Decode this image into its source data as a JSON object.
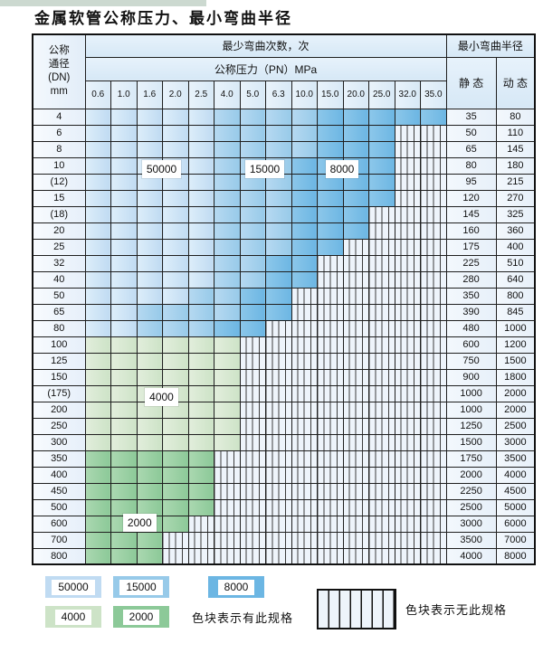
{
  "title": "金属软管公称压力、最小弯曲半径",
  "table": {
    "dn_header_lines": [
      "公称",
      "通径",
      "(DN)",
      "mm"
    ],
    "cycles_header": "最少弯曲次数，次",
    "pressure_header": "公称压力（PN）MPa",
    "radius_header": "最小弯曲半径",
    "static_label": "静 态",
    "dynamic_label": "动 态",
    "pressure_columns": [
      "0.6",
      "1.0",
      "1.6",
      "2.0",
      "2.5",
      "4.0",
      "5.0",
      "6.3",
      "10.0",
      "15.0",
      "20.0",
      "25.0",
      "32.0",
      "35.0"
    ],
    "rows": [
      {
        "dn": "4",
        "zones": "55555111188888",
        "static": "35",
        "dynamic": "80"
      },
      {
        "dn": "6",
        "zones": "555551111888xx",
        "static": "50",
        "dynamic": "110"
      },
      {
        "dn": "8",
        "zones": "555551111888xx",
        "static": "65",
        "dynamic": "145"
      },
      {
        "dn": "10",
        "zones": "555551118888xx",
        "static": "80",
        "dynamic": "180"
      },
      {
        "dn": "(12)",
        "zones": "555551118888xx",
        "static": "95",
        "dynamic": "215"
      },
      {
        "dn": "15",
        "zones": "555551118888xx",
        "static": "120",
        "dynamic": "270"
      },
      {
        "dn": "(18)",
        "zones": "55555111888xxx",
        "static": "145",
        "dynamic": "325"
      },
      {
        "dn": "20",
        "zones": "55555111888xxx",
        "static": "160",
        "dynamic": "360"
      },
      {
        "dn": "25",
        "zones": "5555511188xxxx",
        "static": "175",
        "dynamic": "400"
      },
      {
        "dn": "32",
        "zones": "555551188xxxxx",
        "static": "225",
        "dynamic": "510"
      },
      {
        "dn": "40",
        "zones": "555551188xxxxx",
        "static": "280",
        "dynamic": "640"
      },
      {
        "dn": "50",
        "zones": "55551188xxxxxx",
        "static": "350",
        "dynamic": "800"
      },
      {
        "dn": "65",
        "zones": "55111188xxxxxx",
        "static": "390",
        "dynamic": "845"
      },
      {
        "dn": "80",
        "zones": "5511188xxxxxxx",
        "static": "480",
        "dynamic": "1000"
      },
      {
        "dn": "100",
        "zones": "444444xxxxxxxx",
        "static": "600",
        "dynamic": "1200"
      },
      {
        "dn": "125",
        "zones": "444444xxxxxxxx",
        "static": "750",
        "dynamic": "1500"
      },
      {
        "dn": "150",
        "zones": "444444xxxxxxxx",
        "static": "900",
        "dynamic": "1800"
      },
      {
        "dn": "(175)",
        "zones": "444444xxxxxxxx",
        "static": "1000",
        "dynamic": "2000"
      },
      {
        "dn": "200",
        "zones": "444444xxxxxxxx",
        "static": "1000",
        "dynamic": "2000"
      },
      {
        "dn": "250",
        "zones": "444444xxxxxxxx",
        "static": "1250",
        "dynamic": "2500"
      },
      {
        "dn": "300",
        "zones": "444444xxxxxxxx",
        "static": "1500",
        "dynamic": "3000"
      },
      {
        "dn": "350",
        "zones": "22222xxxxxxxxx",
        "static": "1750",
        "dynamic": "3500"
      },
      {
        "dn": "400",
        "zones": "22222xxxxxxxxx",
        "static": "2000",
        "dynamic": "4000"
      },
      {
        "dn": "450",
        "zones": "22222xxxxxxxxx",
        "static": "2250",
        "dynamic": "4500"
      },
      {
        "dn": "500",
        "zones": "22222xxxxxxxxx",
        "static": "2500",
        "dynamic": "5000"
      },
      {
        "dn": "600",
        "zones": "2222xxxxxxxxxx",
        "static": "3000",
        "dynamic": "6000"
      },
      {
        "dn": "700",
        "zones": "222xxxxxxxxxxx",
        "static": "3500",
        "dynamic": "7000"
      },
      {
        "dn": "800",
        "zones": "222xxxxxxxxxxx",
        "static": "4000",
        "dynamic": "8000"
      }
    ]
  },
  "zones": {
    "5": {
      "cycles": "50000",
      "c1": "#ddeefa",
      "c2": "#c0dbf2"
    },
    "1": {
      "cycles": "15000",
      "c1": "#b6d9f1",
      "c2": "#97cae9"
    },
    "8": {
      "cycles": "8000",
      "c1": "#8cc7ea",
      "c2": "#6cb6e3"
    },
    "4": {
      "cycles": "4000",
      "c1": "#e2eedc",
      "c2": "#cde3c7"
    },
    "2": {
      "cycles": "2000",
      "c1": "#abd8b1",
      "c2": "#8cc998"
    },
    "x": {
      "meaning": "无此规格",
      "c1": "#eef4fb",
      "line": "#3c3c3c"
    }
  },
  "overlays": [
    {
      "text": "50000",
      "col": 2,
      "span": 2,
      "row_boundary": 3.8
    },
    {
      "text": "15000",
      "col": 6,
      "span": 2,
      "row_boundary": 3.8
    },
    {
      "text": "8000",
      "col": 9,
      "span": 2,
      "row_boundary": 3.8
    },
    {
      "text": "4000",
      "col": 2,
      "span": 2,
      "row_boundary": 17.8
    },
    {
      "text": "2000",
      "col": 1,
      "span": 2.3,
      "row_boundary": 25.5
    }
  ],
  "legend": {
    "row1": [
      "5",
      "1",
      "8"
    ],
    "row2": [
      "4",
      "2"
    ],
    "has_spec_text": "色块表示有此规格",
    "no_spec_text": "色块表示无此规格"
  }
}
